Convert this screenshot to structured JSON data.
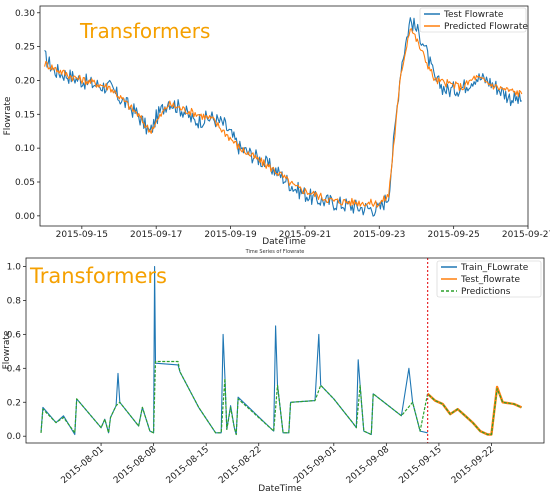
{
  "chart_data": [
    {
      "type": "line",
      "overlay_text": "Transformers",
      "xlabel": "DateTime",
      "ylabel": "Flowrate",
      "xlim": [
        "2015-09-13T21:00",
        "2015-09-27T00:00"
      ],
      "ylim": [
        -0.015,
        0.31
      ],
      "xticks": [
        "2015-09-15",
        "2015-09-17",
        "2015-09-19",
        "2015-09-21",
        "2015-09-23",
        "2015-09-25",
        "2015-09-27"
      ],
      "yticks": [
        "0.00",
        "0.05",
        "0.10",
        "0.15",
        "0.20",
        "0.25",
        "0.30"
      ],
      "legend_position": "top-right",
      "grid": false,
      "series": [
        {
          "name": "Test Flowrate",
          "color": "#1f77b4",
          "noise": 0.012,
          "points": [
            [
              "2015-09-14T00:00",
              0.235
            ],
            [
              "2015-09-14T06:00",
              0.215
            ],
            [
              "2015-09-14T18:00",
              0.205
            ],
            [
              "2015-09-15T06:00",
              0.195
            ],
            [
              "2015-09-15T18:00",
              0.19
            ],
            [
              "2015-09-16T00:00",
              0.175
            ],
            [
              "2015-09-16T12:00",
              0.15
            ],
            [
              "2015-09-16T20:00",
              0.122
            ],
            [
              "2015-09-17T00:00",
              0.145
            ],
            [
              "2015-09-17T08:00",
              0.17
            ],
            [
              "2015-09-17T18:00",
              0.155
            ],
            [
              "2015-09-18T00:00",
              0.14
            ],
            [
              "2015-09-18T12:00",
              0.145
            ],
            [
              "2015-09-18T20:00",
              0.135
            ],
            [
              "2015-09-19T06:00",
              0.1
            ],
            [
              "2015-09-19T18:00",
              0.085
            ],
            [
              "2015-09-20T06:00",
              0.065
            ],
            [
              "2015-09-20T18:00",
              0.04
            ],
            [
              "2015-09-21T06:00",
              0.025
            ],
            [
              "2015-09-21T18:00",
              0.02
            ],
            [
              "2015-09-22T12:00",
              0.012
            ],
            [
              "2015-09-23T00:00",
              0.01
            ],
            [
              "2015-09-23T06:00",
              0.03
            ],
            [
              "2015-09-23T14:00",
              0.22
            ],
            [
              "2015-09-23T20:00",
              0.29
            ],
            [
              "2015-09-24T04:00",
              0.26
            ],
            [
              "2015-09-24T12:00",
              0.2
            ],
            [
              "2015-09-24T20:00",
              0.185
            ],
            [
              "2015-09-25T06:00",
              0.19
            ],
            [
              "2015-09-25T14:00",
              0.205
            ],
            [
              "2015-09-25T22:00",
              0.2
            ],
            [
              "2015-09-26T04:00",
              0.19
            ],
            [
              "2015-09-26T12:00",
              0.175
            ],
            [
              "2015-09-26T20:00",
              0.17
            ]
          ]
        },
        {
          "name": "Predicted Flowrate",
          "color": "#ff7f0e",
          "noise": 0.006,
          "points": [
            [
              "2015-09-14T00:00",
              0.225
            ],
            [
              "2015-09-14T18:00",
              0.205
            ],
            [
              "2015-09-15T18:00",
              0.19
            ],
            [
              "2015-09-16T12:00",
              0.15
            ],
            [
              "2015-09-16T20:00",
              0.125
            ],
            [
              "2015-09-17T08:00",
              0.165
            ],
            [
              "2015-09-18T12:00",
              0.143
            ],
            [
              "2015-09-19T06:00",
              0.1
            ],
            [
              "2015-09-20T06:00",
              0.065
            ],
            [
              "2015-09-20T18:00",
              0.042
            ],
            [
              "2015-09-21T18:00",
              0.022
            ],
            [
              "2015-09-23T00:00",
              0.018
            ],
            [
              "2015-09-23T06:00",
              0.03
            ],
            [
              "2015-09-23T14:00",
              0.21
            ],
            [
              "2015-09-23T20:00",
              0.28
            ],
            [
              "2015-09-24T12:00",
              0.2
            ],
            [
              "2015-09-25T06:00",
              0.19
            ],
            [
              "2015-09-25T14:00",
              0.205
            ],
            [
              "2015-09-26T04:00",
              0.19
            ],
            [
              "2015-09-26T20:00",
              0.18
            ]
          ]
        }
      ]
    },
    {
      "type": "line",
      "title": "Time Series of Flowrate",
      "overlay_text": "Transformers",
      "xlabel": "DateTime",
      "ylabel": "Flowrate",
      "xlim": [
        "2015-07-22T00:00",
        "2015-09-29T00:00"
      ],
      "ylim": [
        -0.04,
        1.05
      ],
      "xticks": [
        "2015-08-01",
        "2015-08-08",
        "2015-08-15",
        "2015-08-22",
        "2015-09-01",
        "2015-09-08",
        "2015-09-15",
        "2015-09-22"
      ],
      "yticks": [
        "0.0",
        "0.2",
        "0.4",
        "0.6",
        "0.8",
        "1.0"
      ],
      "legend_position": "top-right",
      "grid": false,
      "vline": {
        "x": "2015-09-13T12:00",
        "color": "#e8262a"
      },
      "series": [
        {
          "name": "Train_FLowrate",
          "color": "#1f77b4",
          "points": [
            [
              "2015-07-24T00:00",
              0.02
            ],
            [
              "2015-07-24T06:00",
              0.17
            ],
            [
              "2015-07-26T00:00",
              0.08
            ],
            [
              "2015-07-27T00:00",
              0.12
            ],
            [
              "2015-07-28T12:00",
              0.01
            ],
            [
              "2015-07-28T18:00",
              0.22
            ],
            [
              "2015-08-01T00:00",
              0.05
            ],
            [
              "2015-08-01T12:00",
              0.1
            ],
            [
              "2015-08-02T00:00",
              0.02
            ],
            [
              "2015-08-02T06:00",
              0.11
            ],
            [
              "2015-08-03T00:00",
              0.18
            ],
            [
              "2015-08-03T06:00",
              0.37
            ],
            [
              "2015-08-03T12:00",
              0.2
            ],
            [
              "2015-08-06T00:00",
              0.06
            ],
            [
              "2015-08-06T12:00",
              0.17
            ],
            [
              "2015-08-07T12:00",
              0.03
            ],
            [
              "2015-08-08T00:00",
              0.02
            ],
            [
              "2015-08-08T03:00",
              1.0
            ],
            [
              "2015-08-08T06:00",
              0.43
            ],
            [
              "2015-08-11T06:00",
              0.42
            ],
            [
              "2015-08-11T12:00",
              0.38
            ],
            [
              "2015-08-14T00:00",
              0.17
            ],
            [
              "2015-08-16T06:00",
              0.02
            ],
            [
              "2015-08-17T00:00",
              0.02
            ],
            [
              "2015-08-17T06:00",
              0.6
            ],
            [
              "2015-08-17T12:00",
              0.35
            ],
            [
              "2015-08-17T18:00",
              0.04
            ],
            [
              "2015-08-18T06:00",
              0.18
            ],
            [
              "2015-08-18T18:00",
              0.05
            ],
            [
              "2015-08-19T00:00",
              0.01
            ],
            [
              "2015-08-19T06:00",
              0.23
            ],
            [
              "2015-08-24T00:00",
              0.03
            ],
            [
              "2015-08-24T06:00",
              0.65
            ],
            [
              "2015-08-24T12:00",
              0.3
            ],
            [
              "2015-08-25T06:00",
              0.02
            ],
            [
              "2015-08-26T00:00",
              0.02
            ],
            [
              "2015-08-26T06:00",
              0.2
            ],
            [
              "2015-08-29T12:00",
              0.21
            ],
            [
              "2015-08-30T00:00",
              0.6
            ],
            [
              "2015-08-30T06:00",
              0.3
            ],
            [
              "2015-09-01T00:00",
              0.22
            ],
            [
              "2015-09-03T12:00",
              0.08
            ],
            [
              "2015-09-04T00:00",
              0.05
            ],
            [
              "2015-09-04T06:00",
              0.45
            ],
            [
              "2015-09-04T12:00",
              0.3
            ],
            [
              "2015-09-05T00:00",
              0.03
            ],
            [
              "2015-09-06T00:00",
              0.01
            ],
            [
              "2015-09-06T06:00",
              0.25
            ],
            [
              "2015-09-10T00:00",
              0.12
            ],
            [
              "2015-09-11T00:00",
              0.4
            ],
            [
              "2015-09-11T12:00",
              0.2
            ],
            [
              "2015-09-12T12:00",
              0.03
            ],
            [
              "2015-09-13T12:00",
              0.02
            ]
          ]
        },
        {
          "name": "Test_flowrate",
          "color": "#ff7f0e",
          "points": [
            [
              "2015-09-13T12:00",
              0.25
            ],
            [
              "2015-09-14T12:00",
              0.21
            ],
            [
              "2015-09-15T12:00",
              0.19
            ],
            [
              "2015-09-16T12:00",
              0.13
            ],
            [
              "2015-09-17T12:00",
              0.16
            ],
            [
              "2015-09-18T12:00",
              0.12
            ],
            [
              "2015-09-19T12:00",
              0.08
            ],
            [
              "2015-09-20T12:00",
              0.03
            ],
            [
              "2015-09-21T12:00",
              0.01
            ],
            [
              "2015-09-22T00:00",
              0.01
            ],
            [
              "2015-09-22T18:00",
              0.29
            ],
            [
              "2015-09-23T12:00",
              0.2
            ],
            [
              "2015-09-25T00:00",
              0.19
            ],
            [
              "2015-09-26T00:00",
              0.17
            ]
          ]
        },
        {
          "name": "Predictions",
          "color": "#2ca02c",
          "dashed": true,
          "points": [
            [
              "2015-07-24T00:00",
              0.02
            ],
            [
              "2015-07-24T06:00",
              0.16
            ],
            [
              "2015-07-26T00:00",
              0.08
            ],
            [
              "2015-07-27T00:00",
              0.11
            ],
            [
              "2015-07-28T12:00",
              0.02
            ],
            [
              "2015-07-28T18:00",
              0.22
            ],
            [
              "2015-08-01T00:00",
              0.05
            ],
            [
              "2015-08-01T12:00",
              0.1
            ],
            [
              "2015-08-02T00:00",
              0.02
            ],
            [
              "2015-08-02T06:00",
              0.11
            ],
            [
              "2015-08-03T00:00",
              0.18
            ],
            [
              "2015-08-03T12:00",
              0.2
            ],
            [
              "2015-08-06T00:00",
              0.06
            ],
            [
              "2015-08-06T12:00",
              0.17
            ],
            [
              "2015-08-07T12:00",
              0.03
            ],
            [
              "2015-08-08T00:00",
              0.02
            ],
            [
              "2015-08-08T06:00",
              0.44
            ],
            [
              "2015-08-11T06:00",
              0.44
            ],
            [
              "2015-08-11T12:00",
              0.38
            ],
            [
              "2015-08-14T00:00",
              0.17
            ],
            [
              "2015-08-16T06:00",
              0.02
            ],
            [
              "2015-08-17T00:00",
              0.02
            ],
            [
              "2015-08-17T12:00",
              0.34
            ],
            [
              "2015-08-17T18:00",
              0.04
            ],
            [
              "2015-08-18T06:00",
              0.17
            ],
            [
              "2015-08-18T18:00",
              0.05
            ],
            [
              "2015-08-19T00:00",
              0.01
            ],
            [
              "2015-08-19T06:00",
              0.22
            ],
            [
              "2015-08-24T00:00",
              0.03
            ],
            [
              "2015-08-24T12:00",
              0.3
            ],
            [
              "2015-08-25T06:00",
              0.02
            ],
            [
              "2015-08-26T00:00",
              0.02
            ],
            [
              "2015-08-26T06:00",
              0.2
            ],
            [
              "2015-08-29T12:00",
              0.21
            ],
            [
              "2015-08-30T06:00",
              0.3
            ],
            [
              "2015-09-01T00:00",
              0.22
            ],
            [
              "2015-09-03T12:00",
              0.08
            ],
            [
              "2015-09-04T00:00",
              0.05
            ],
            [
              "2015-09-04T12:00",
              0.3
            ],
            [
              "2015-09-05T00:00",
              0.03
            ],
            [
              "2015-09-06T00:00",
              0.01
            ],
            [
              "2015-09-06T06:00",
              0.25
            ],
            [
              "2015-09-10T00:00",
              0.12
            ],
            [
              "2015-09-11T12:00",
              0.2
            ],
            [
              "2015-09-12T12:00",
              0.03
            ],
            [
              "2015-09-13T12:00",
              0.25
            ],
            [
              "2015-09-14T12:00",
              0.21
            ],
            [
              "2015-09-15T12:00",
              0.19
            ],
            [
              "2015-09-16T12:00",
              0.13
            ],
            [
              "2015-09-17T12:00",
              0.16
            ],
            [
              "2015-09-18T12:00",
              0.12
            ],
            [
              "2015-09-19T12:00",
              0.08
            ],
            [
              "2015-09-20T12:00",
              0.03
            ],
            [
              "2015-09-21T12:00",
              0.01
            ],
            [
              "2015-09-22T00:00",
              0.01
            ],
            [
              "2015-09-22T18:00",
              0.28
            ],
            [
              "2015-09-23T12:00",
              0.2
            ],
            [
              "2015-09-25T00:00",
              0.19
            ],
            [
              "2015-09-26T00:00",
              0.17
            ]
          ]
        }
      ]
    }
  ]
}
